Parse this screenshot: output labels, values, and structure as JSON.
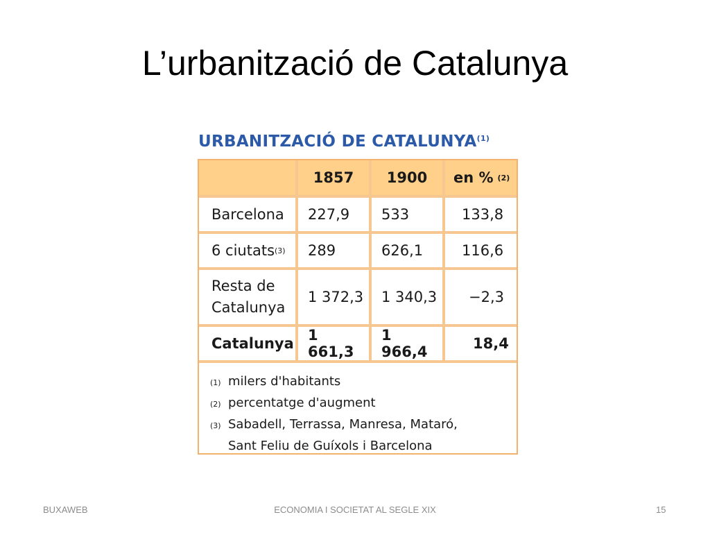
{
  "slide": {
    "title": "L’urbanització de Catalunya"
  },
  "table": {
    "title": "URBANITZACIÓ DE CATALUNYA",
    "title_note": "(1)",
    "headers": [
      "",
      "1857",
      "1900",
      "en %",
      "(2)"
    ],
    "rows": [
      {
        "label": "Barcelona",
        "sup": "",
        "v1857": "227,9",
        "v1900": "533",
        "pct": "133,8"
      },
      {
        "label": "6 ciutats",
        "sup": "(3)",
        "v1857": "289",
        "v1900": "626,1",
        "pct": "116,6"
      },
      {
        "label_line1": "Resta de",
        "label_line2": "Catalunya",
        "v1857": "1 372,3",
        "v1900": "1 340,3",
        "pct": "−2,3"
      },
      {
        "label": "Catalunya",
        "sup": "",
        "v1857": "1 661,3",
        "v1900": "1 966,4",
        "pct": "18,4"
      }
    ],
    "notes": [
      {
        "mark": "(1)",
        "text": "milers d'habitants"
      },
      {
        "mark": "(2)",
        "text": "percentatge d'augment"
      },
      {
        "mark": "(3)",
        "text": "Sabadell, Terrassa, Manresa, Mataró,"
      },
      {
        "mark": "",
        "text": "Sant Feliu de Guíxols i Barcelona"
      }
    ]
  },
  "footer": {
    "left": "BUXAWEB",
    "center": "ECONOMIA I SOCIETAT AL SEGLE XIX",
    "page": "15"
  }
}
